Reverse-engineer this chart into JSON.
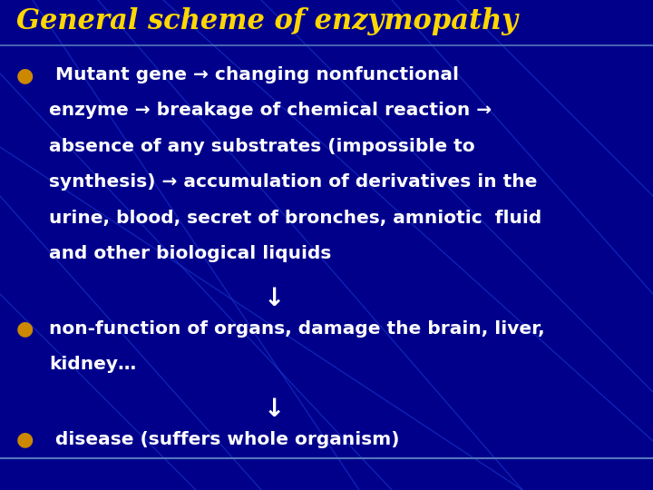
{
  "title": "General scheme of enzymopathy",
  "title_color": "#FFD700",
  "title_fontsize": 22,
  "title_style": "italic",
  "title_weight": "bold",
  "bg_color": "#00008B",
  "text_color": "#FFFFFF",
  "bullet_color": "#CC8800",
  "bullet1_line1": " Mutant gene → changing nonfunctional",
  "bullet1_line2": "enzyme → breakage of chemical reaction →",
  "bullet1_line3": "absence of any substrates (impossible to",
  "bullet1_line4": "synthesis) → accumulation of derivatives in the",
  "bullet1_line5": "urine, blood, secret of bronches, amniotic  fluid",
  "bullet1_line6": "and other biological liquids",
  "arrow1": "↓",
  "bullet2_line1": "non-function of organs, damage the brain, liver,",
  "bullet2_line2": "kidney…",
  "arrow2": "↓",
  "bullet3": " disease (suffers whole organism)",
  "body_fontsize": 14.5,
  "arrow_fontsize": 20,
  "figsize": [
    7.2,
    5.4
  ],
  "dpi": 100,
  "line_color": "#1a3acc",
  "hline_color": "#5577bb",
  "hline_y": 0.908
}
